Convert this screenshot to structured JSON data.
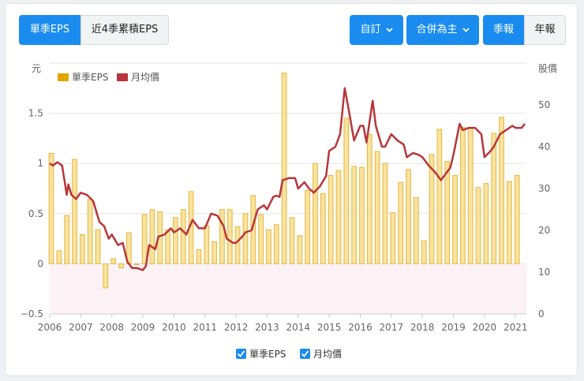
{
  "toggle": {
    "quarter_eps": "單季EPS",
    "trailing_eps": "近4季累積EPS"
  },
  "controls": {
    "custom": "自訂",
    "consolidated": "合併為主",
    "quarterly": "季報",
    "annual": "年報"
  },
  "colors": {
    "primary": "#1a8cf0",
    "bar_fill": "#f8e3a0",
    "bar_stroke": "#e8b53a",
    "line": "#b8363a",
    "legend_bar": "#e3a400",
    "negative_band": "#fdf2f6"
  },
  "chart_data": {
    "type": "bar",
    "y_left": {
      "label": "元",
      "ylim": [
        -0.5,
        2.0
      ],
      "ticks": [
        -0.5,
        0,
        0.5,
        1,
        1.5
      ]
    },
    "y_right": {
      "label": "股價",
      "ylim": [
        0,
        60
      ],
      "ticks": [
        0,
        10,
        20,
        30,
        40,
        50
      ]
    },
    "x_range": [
      2006,
      2021.35
    ],
    "x_ticks": [
      "2006",
      "2007",
      "2008",
      "2009",
      "2010",
      "2011",
      "2012",
      "2013",
      "2014",
      "2015",
      "2016",
      "2017",
      "2018",
      "2019",
      "2020",
      "2021"
    ],
    "legend": {
      "eps_label": "單季EPS",
      "price_label": "月均價",
      "position": "top-left"
    },
    "bottom_legend": {
      "eps_label": "單季EPS",
      "price_label": "月均價"
    },
    "series": [
      {
        "name": "單季EPS",
        "type": "bar",
        "x": [
          "2006Q1",
          "2006Q2",
          "2006Q3",
          "2006Q4",
          "2007Q1",
          "2007Q2",
          "2007Q3",
          "2007Q4",
          "2008Q1",
          "2008Q2",
          "2008Q3",
          "2008Q4",
          "2009Q1",
          "2009Q2",
          "2009Q3",
          "2009Q4",
          "2010Q1",
          "2010Q2",
          "2010Q3",
          "2010Q4",
          "2011Q1",
          "2011Q2",
          "2011Q3",
          "2011Q4",
          "2012Q1",
          "2012Q2",
          "2012Q3",
          "2012Q4",
          "2013Q1",
          "2013Q2",
          "2013Q3",
          "2013Q4",
          "2014Q1",
          "2014Q2",
          "2014Q3",
          "2014Q4",
          "2015Q1",
          "2015Q2",
          "2015Q3",
          "2015Q4",
          "2016Q1",
          "2016Q2",
          "2016Q3",
          "2016Q4",
          "2017Q1",
          "2017Q2",
          "2017Q3",
          "2017Q4",
          "2018Q1",
          "2018Q2",
          "2018Q3",
          "2018Q4",
          "2019Q1",
          "2019Q2",
          "2019Q3",
          "2019Q4",
          "2020Q1",
          "2020Q2",
          "2020Q3",
          "2020Q4",
          "2021Q1"
        ],
        "values": [
          1.1,
          0.13,
          0.48,
          1.04,
          0.29,
          0.64,
          0.34,
          -0.24,
          0.05,
          -0.04,
          0.31,
          0.0,
          0.49,
          0.54,
          0.52,
          0.34,
          0.46,
          0.54,
          0.72,
          0.14,
          0.38,
          0.22,
          0.54,
          0.54,
          0.37,
          0.5,
          0.68,
          0.49,
          0.34,
          0.39,
          1.9,
          0.46,
          0.28,
          0.73,
          1.0,
          0.7,
          0.88,
          0.93,
          1.45,
          0.97,
          0.96,
          1.29,
          1.12,
          1.0,
          0.51,
          0.81,
          0.94,
          0.66,
          0.23,
          1.09,
          1.34,
          1.02,
          0.88,
          1.36,
          1.36,
          0.76,
          0.8,
          1.3,
          1.46,
          0.82,
          0.88
        ]
      },
      {
        "name": "月均價",
        "type": "line",
        "x": [
          2006.0,
          2006.1,
          2006.25,
          2006.4,
          2006.55,
          2006.6,
          2006.7,
          2006.85,
          2007.0,
          2007.2,
          2007.4,
          2007.6,
          2007.75,
          2007.9,
          2008.0,
          2008.2,
          2008.35,
          2008.5,
          2008.65,
          2008.8,
          2009.0,
          2009.1,
          2009.2,
          2009.4,
          2009.5,
          2009.7,
          2009.9,
          2010.0,
          2010.2,
          2010.4,
          2010.6,
          2010.8,
          2011.0,
          2011.2,
          2011.4,
          2011.6,
          2011.7,
          2011.9,
          2012.0,
          2012.2,
          2012.3,
          2012.5,
          2012.7,
          2012.9,
          2013.0,
          2013.2,
          2013.3,
          2013.4,
          2013.5,
          2013.7,
          2013.9,
          2014.0,
          2014.2,
          2014.35,
          2014.5,
          2014.7,
          2014.9,
          2015.0,
          2015.2,
          2015.35,
          2015.5,
          2015.65,
          2015.8,
          2016.0,
          2016.1,
          2016.2,
          2016.4,
          2016.5,
          2016.7,
          2016.8,
          2017.0,
          2017.2,
          2017.4,
          2017.5,
          2017.7,
          2017.9,
          2018.0,
          2018.2,
          2018.4,
          2018.6,
          2018.7,
          2018.9,
          2019.0,
          2019.2,
          2019.3,
          2019.5,
          2019.7,
          2019.9,
          2020.0,
          2020.2,
          2020.3,
          2020.5,
          2020.7,
          2020.9,
          2021.0,
          2021.2,
          2021.3
        ],
        "values": [
          36,
          35.5,
          36.3,
          35.5,
          28.5,
          31,
          28.5,
          27.5,
          29,
          28.5,
          27,
          22,
          21,
          18,
          19,
          16.5,
          17,
          12.5,
          11,
          11,
          10.5,
          11.5,
          16.5,
          15.5,
          18.5,
          19,
          20.5,
          19.5,
          20.5,
          19,
          22.5,
          20.5,
          20.5,
          24,
          23.5,
          21,
          18,
          17,
          17,
          18.5,
          19.5,
          20,
          25,
          26,
          25,
          28,
          28.3,
          28,
          32,
          32.5,
          32.5,
          30,
          31.5,
          30,
          29,
          30.5,
          33,
          39,
          40,
          43,
          54,
          48,
          41.5,
          45,
          45,
          41,
          51,
          45,
          40,
          40,
          43,
          41.5,
          40.5,
          37.5,
          38.5,
          38,
          37.5,
          35.5,
          34,
          32,
          33,
          35,
          38,
          45.5,
          44,
          44.5,
          44.5,
          43,
          37.5,
          39,
          40,
          43,
          44,
          45,
          44.5,
          44.5,
          45.5
        ]
      }
    ]
  }
}
